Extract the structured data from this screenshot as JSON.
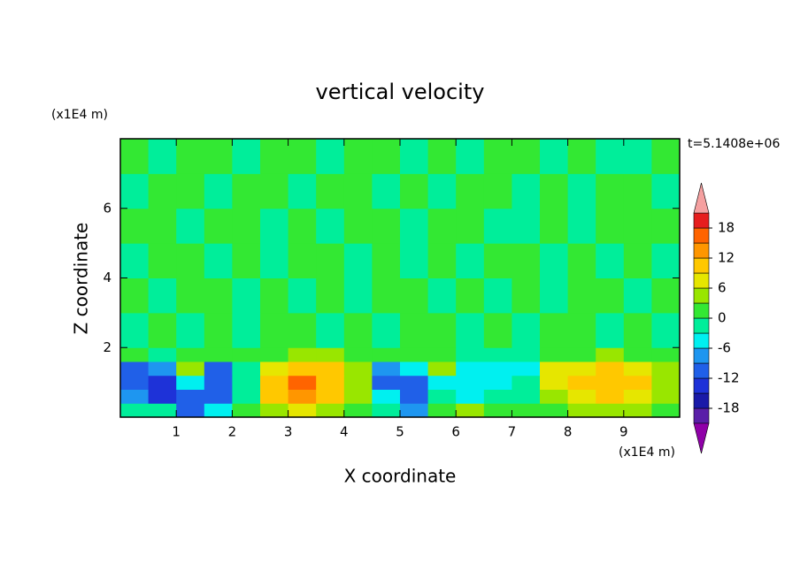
{
  "chart_data": {
    "type": "contour",
    "title": "vertical velocity",
    "x_label": "X coordinate",
    "y_label": "Z coordinate",
    "x_unit": "(x1E4 m)",
    "y_unit": "(x1E4 m)",
    "time_label": "t=5.1408e+06",
    "xlim": [
      0,
      10
    ],
    "ylim": [
      0,
      8
    ],
    "xticks": [
      1,
      2,
      3,
      4,
      5,
      6,
      7,
      8,
      9
    ],
    "yticks": [
      2,
      4,
      6
    ],
    "x_edges": [
      0,
      0.5,
      1,
      1.5,
      2,
      2.5,
      3,
      3.5,
      4,
      4.5,
      5,
      5.5,
      6,
      6.5,
      7,
      7.5,
      8,
      8.5,
      9,
      9.5,
      10
    ],
    "y_edges": [
      0,
      0.4,
      0.8,
      1.2,
      1.6,
      2,
      3,
      4,
      5,
      6,
      7,
      8
    ],
    "values": [
      [
        -1,
        -2,
        -10,
        -4,
        1,
        5,
        8,
        5,
        1,
        -2,
        -9,
        0,
        3,
        1,
        0,
        2,
        4,
        5,
        3,
        2
      ],
      [
        -9,
        -13,
        -12,
        -10,
        -2,
        10,
        13,
        9,
        3,
        -6,
        -12,
        -3,
        -4,
        -2,
        -1,
        5,
        8,
        9,
        7,
        4
      ],
      [
        -12,
        -14,
        -6,
        -12,
        -3,
        11,
        15,
        11,
        4,
        -10,
        -11,
        -5,
        -5,
        -4,
        -3,
        7,
        10,
        11,
        9,
        5
      ],
      [
        -10,
        -7,
        4,
        -10,
        -1,
        8,
        9,
        10,
        3,
        -8,
        -6,
        4,
        -4,
        -5,
        -5,
        6,
        8,
        9,
        7,
        4
      ],
      [
        1,
        -1,
        2,
        0,
        1,
        2,
        3,
        3,
        2,
        0,
        1,
        2,
        -1,
        -1,
        -2,
        1,
        2,
        3,
        2,
        1
      ],
      [
        -1,
        1,
        -1,
        2,
        -1,
        1,
        2,
        -1,
        1,
        -1,
        2,
        1,
        -1,
        1,
        -1,
        1,
        2,
        -1,
        1,
        -1
      ],
      [
        1,
        -1,
        1,
        1,
        -1,
        2,
        -1,
        1,
        -1,
        2,
        1,
        -1,
        1,
        -1,
        1,
        -1,
        1,
        1,
        -1,
        1
      ],
      [
        -1,
        1,
        2,
        -1,
        1,
        -1,
        1,
        2,
        -1,
        1,
        -1,
        1,
        -1,
        2,
        1,
        -1,
        1,
        -1,
        2,
        -1
      ],
      [
        1,
        1,
        -1,
        1,
        2,
        -1,
        1,
        -1,
        1,
        1,
        -1,
        2,
        1,
        -1,
        -1,
        1,
        -1,
        2,
        1,
        1
      ],
      [
        -1,
        1,
        1,
        -1,
        1,
        2,
        -1,
        1,
        1,
        -1,
        2,
        -1,
        1,
        1,
        -1,
        1,
        -1,
        1,
        1,
        -1
      ],
      [
        1,
        -1,
        1,
        2,
        -1,
        1,
        1,
        -1,
        1,
        2,
        -1,
        1,
        -1,
        1,
        2,
        -1,
        1,
        -1,
        -1,
        1
      ]
    ],
    "levels": [
      -21,
      -18,
      -15,
      -12,
      -9,
      -6,
      -3,
      0,
      3,
      6,
      9,
      12,
      15,
      18,
      21
    ],
    "colors": [
      "#8f00a8",
      "#5a1fa8",
      "#1a1aa8",
      "#1e32d8",
      "#2060e8",
      "#1e96f0",
      "#00f0f0",
      "#00ee9a",
      "#33e833",
      "#99e600",
      "#e6e600",
      "#ffc800",
      "#ff9600",
      "#ff6400",
      "#e61e1e",
      "#f5a0a0"
    ],
    "cbar_ticks": [
      -18,
      -12,
      -6,
      0,
      6,
      12,
      18
    ]
  }
}
